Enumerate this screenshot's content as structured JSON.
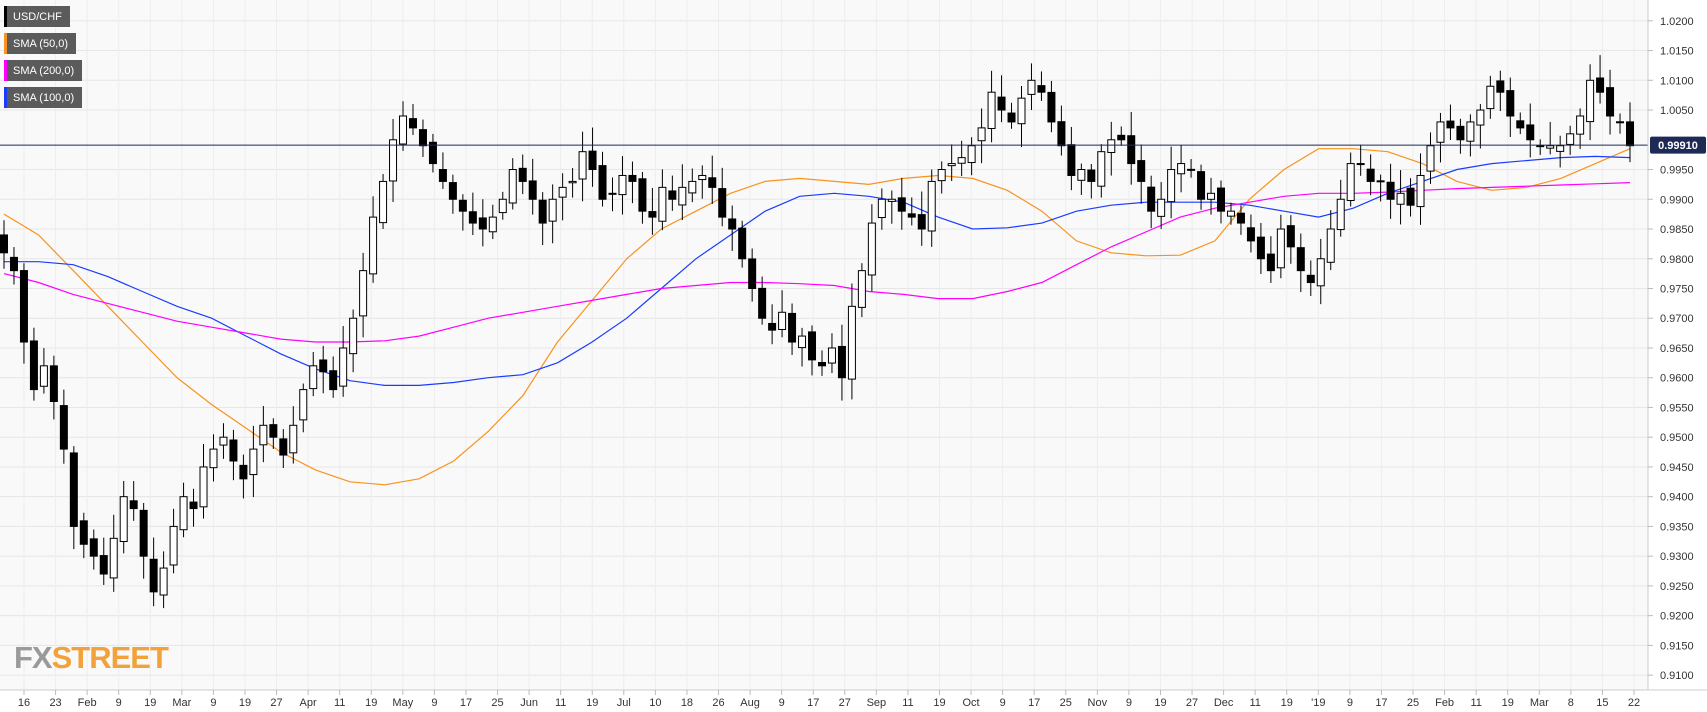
{
  "legend": [
    {
      "label": "USD/CHF",
      "color": "#000000"
    },
    {
      "label": "SMA (50,0)",
      "color": "#f7931e"
    },
    {
      "label": "SMA (200,0)",
      "color": "#ff00ff"
    },
    {
      "label": "SMA (100,0)",
      "color": "#1a3cff"
    }
  ],
  "logo": {
    "fx": "FX",
    "street": "STREET"
  },
  "chart_data": {
    "type": "line",
    "title": "USD/CHF",
    "current_price": 0.9991,
    "current_price_label": "0.99910",
    "ylim": [
      0.9075,
      1.0235
    ],
    "y_ticks": [
      "1.0200",
      "1.0150",
      "1.0100",
      "1.0050",
      "0.9950",
      "0.9900",
      "0.9850",
      "0.9800",
      "0.9750",
      "0.9700",
      "0.9650",
      "0.9600",
      "0.9550",
      "0.9500",
      "0.9450",
      "0.9400",
      "0.9350",
      "0.9300",
      "0.9250",
      "0.9200",
      "0.9150",
      "0.9100"
    ],
    "x_ticks": [
      "16",
      "23",
      "Feb",
      "9",
      "19",
      "Mar",
      "9",
      "19",
      "27",
      "Apr",
      "11",
      "19",
      "May",
      "9",
      "17",
      "25",
      "Jun",
      "11",
      "19",
      "Jul",
      "10",
      "18",
      "26",
      "Aug",
      "9",
      "17",
      "27",
      "Sep",
      "11",
      "19",
      "Oct",
      "9",
      "17",
      "25",
      "Nov",
      "9",
      "19",
      "27",
      "Dec",
      "11",
      "19",
      "'19",
      "9",
      "17",
      "25",
      "Feb",
      "11",
      "19",
      "Mar",
      "8",
      "15",
      "22"
    ],
    "grid": true,
    "series": [
      {
        "name": "USD/CHF",
        "color": "#000000",
        "values": [
          0.981,
          0.978,
          0.966,
          0.958,
          0.962,
          0.956,
          0.948,
          0.935,
          0.932,
          0.93,
          0.927,
          0.933,
          0.94,
          0.938,
          0.93,
          0.924,
          0.928,
          0.935,
          0.94,
          0.938,
          0.945,
          0.948,
          0.95,
          0.946,
          0.943,
          0.948,
          0.952,
          0.95,
          0.947,
          0.952,
          0.958,
          0.962,
          0.961,
          0.958,
          0.965,
          0.97,
          0.978,
          0.987,
          0.993,
          1.0,
          1.004,
          1.002,
          0.999,
          0.996,
          0.993,
          0.99,
          0.988,
          0.986,
          0.985,
          0.987,
          0.99,
          0.995,
          0.993,
          0.99,
          0.986,
          0.99,
          0.992,
          0.993,
          0.998,
          0.995,
          0.99,
          0.991,
          0.994,
          0.993,
          0.988,
          0.987,
          0.992,
          0.99,
          0.992,
          0.993,
          0.994,
          0.992,
          0.987,
          0.985,
          0.98,
          0.975,
          0.97,
          0.968,
          0.971,
          0.966,
          0.967,
          0.963,
          0.962,
          0.965,
          0.96,
          0.972,
          0.978,
          0.986,
          0.99,
          0.99,
          0.988,
          0.987,
          0.985,
          0.993,
          0.995,
          0.996,
          0.997,
          0.999,
          1.002,
          1.008,
          1.005,
          1.003,
          1.007,
          1.01,
          1.008,
          1.003,
          0.999,
          0.994,
          0.995,
          0.993,
          0.998,
          1.0,
          1.0,
          0.996,
          0.993,
          0.988,
          0.99,
          0.995,
          0.996,
          0.995,
          0.99,
          0.991,
          0.988,
          0.988,
          0.986,
          0.983,
          0.98,
          0.978,
          0.985,
          0.982,
          0.978,
          0.976,
          0.98,
          0.985,
          0.99,
          0.996,
          0.996,
          0.993,
          0.993,
          0.99,
          0.991,
          0.989,
          0.994,
          0.999,
          1.003,
          1.002,
          1.0,
          1.003,
          1.005,
          1.009,
          1.008,
          1.004,
          1.002,
          1.0,
          0.999,
          0.999,
          0.999,
          1.001,
          1.004,
          1.01,
          1.008,
          1.004,
          1.003,
          0.999
        ]
      },
      {
        "name": "SMA (50,0)",
        "color": "#f7931e"
      },
      {
        "name": "SMA (200,0)",
        "color": "#ff00ff"
      },
      {
        "name": "SMA (100,0)",
        "color": "#1a3cff"
      }
    ],
    "sma_values": {
      "sma50": [
        0.9875,
        0.984,
        0.978,
        0.972,
        0.966,
        0.96,
        0.9555,
        0.9515,
        0.9475,
        0.9445,
        0.9425,
        0.942,
        0.943,
        0.946,
        0.951,
        0.957,
        0.966,
        0.973,
        0.98,
        0.985,
        0.988,
        0.991,
        0.993,
        0.9935,
        0.993,
        0.9925,
        0.9935,
        0.994,
        0.9935,
        0.9915,
        0.988,
        0.983,
        0.981,
        0.9805,
        0.9806,
        0.983,
        0.99,
        0.995,
        0.9985,
        0.9985,
        0.998,
        0.996,
        0.993,
        0.9915,
        0.992,
        0.9935,
        0.996,
        0.9985
      ],
      "sma100": [
        0.9795,
        0.9795,
        0.979,
        0.977,
        0.9745,
        0.972,
        0.97,
        0.967,
        0.964,
        0.9615,
        0.9595,
        0.9587,
        0.9587,
        0.9592,
        0.96,
        0.9605,
        0.9625,
        0.966,
        0.97,
        0.975,
        0.98,
        0.984,
        0.988,
        0.9905,
        0.991,
        0.9905,
        0.9895,
        0.987,
        0.985,
        0.9852,
        0.986,
        0.988,
        0.989,
        0.9895,
        0.9895,
        0.9895,
        0.989,
        0.988,
        0.987,
        0.9885,
        0.991,
        0.993,
        0.995,
        0.996,
        0.9965,
        0.997,
        0.9972,
        0.997
      ],
      "sma200": [
        0.9775,
        0.976,
        0.974,
        0.9725,
        0.971,
        0.9695,
        0.9685,
        0.9675,
        0.9665,
        0.966,
        0.966,
        0.9662,
        0.967,
        0.9685,
        0.97,
        0.971,
        0.972,
        0.973,
        0.974,
        0.975,
        0.9755,
        0.976,
        0.976,
        0.9758,
        0.9755,
        0.9745,
        0.974,
        0.9733,
        0.9733,
        0.9745,
        0.976,
        0.979,
        0.982,
        0.9845,
        0.987,
        0.9885,
        0.9895,
        0.9905,
        0.991,
        0.991,
        0.9912,
        0.9915,
        0.9918,
        0.992,
        0.9922,
        0.9924,
        0.9926,
        0.9928
      ]
    }
  }
}
